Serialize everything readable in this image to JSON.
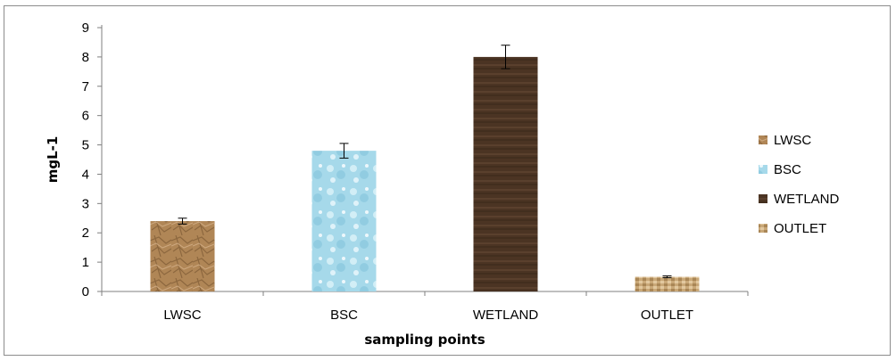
{
  "chart_data": {
    "type": "bar",
    "title": "",
    "xlabel": "sampling points",
    "ylabel": "mgL-1",
    "categories": [
      "LWSC",
      "BSC",
      "WETLAND",
      "OUTLET"
    ],
    "values": [
      2.4,
      4.8,
      8.0,
      0.5
    ],
    "error": [
      0.1,
      0.25,
      0.4,
      0.03
    ],
    "ylim": [
      0,
      9
    ],
    "yticks": [
      "0",
      "1",
      "2",
      "3",
      "4",
      "5",
      "6",
      "7",
      "8",
      "9"
    ],
    "grid": false,
    "legend": {
      "placement": "right",
      "entries": [
        "LWSC",
        "BSC",
        "WETLAND",
        "OUTLET"
      ]
    },
    "colors": {
      "LWSC": "#b38a5c",
      "BSC": "#a9dcec",
      "WETLAND": "#4a3322",
      "OUTLET": "#c9a878"
    }
  }
}
